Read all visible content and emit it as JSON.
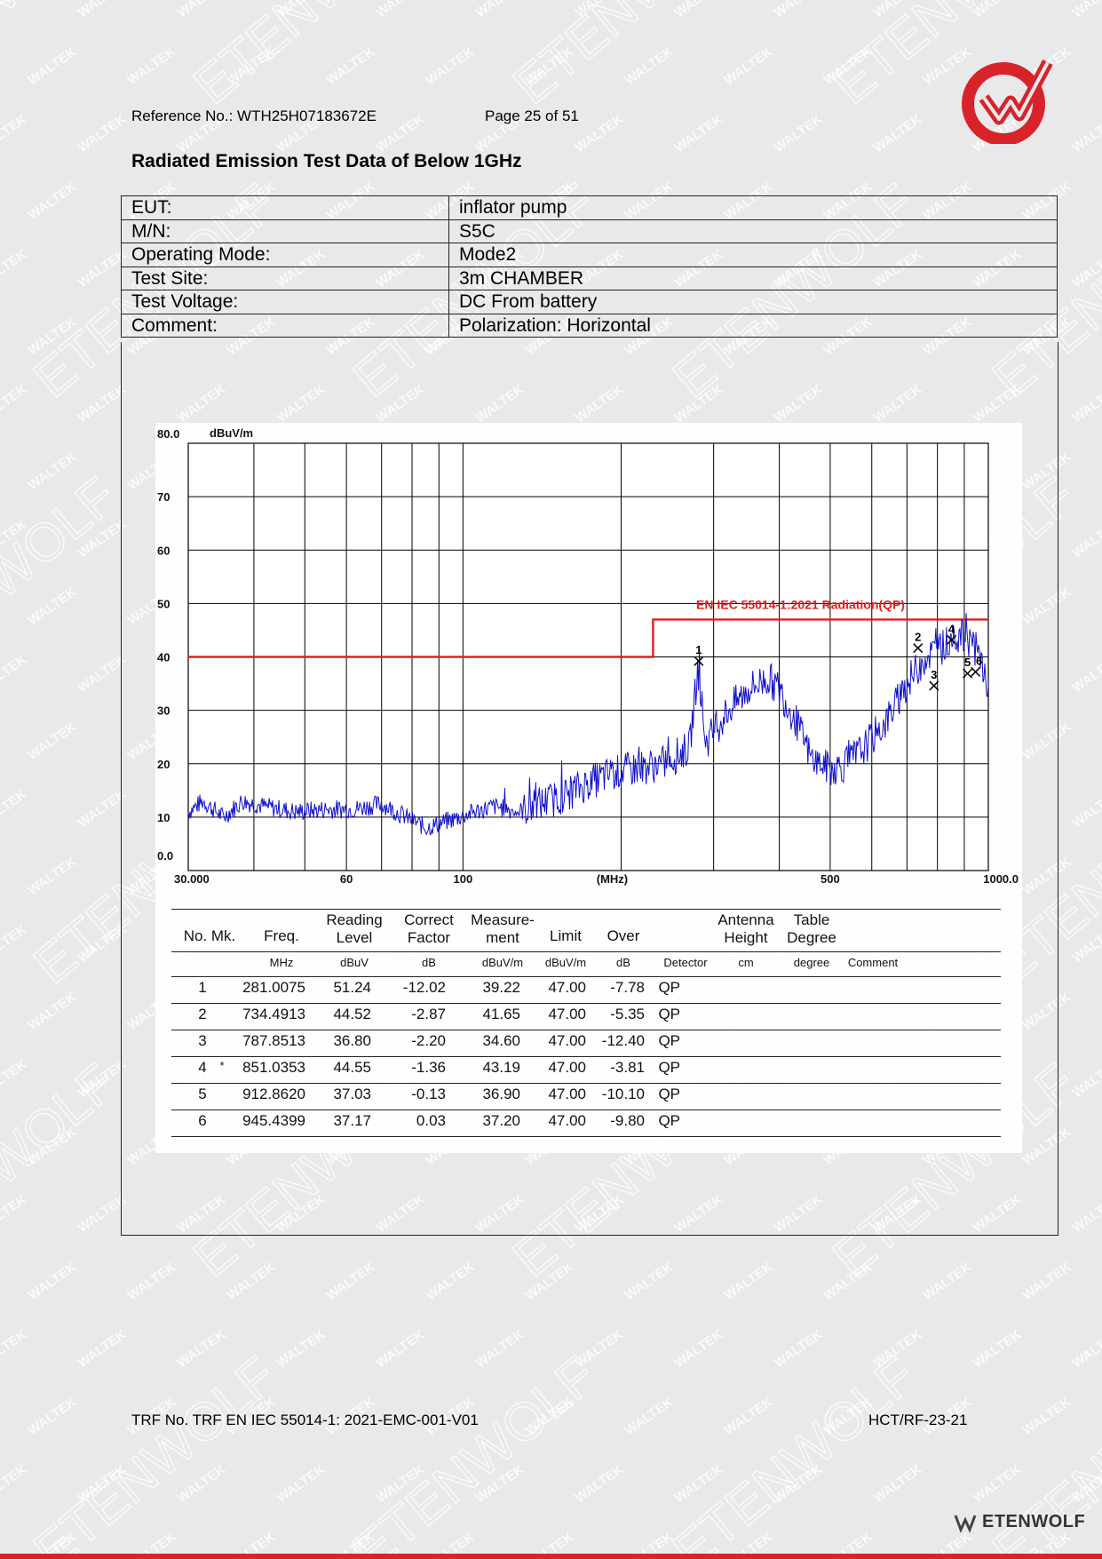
{
  "header": {
    "reference": "Reference No.: WTH25H07183672E",
    "page": "Page 25 of 51"
  },
  "title": "Radiated Emission Test Data of Below 1GHz",
  "info": [
    {
      "label": "EUT:",
      "value": "inflator pump"
    },
    {
      "label": "M/N:",
      "value": "S5C"
    },
    {
      "label": "Operating Mode:",
      "value": "Mode2"
    },
    {
      "label": "Test Site:",
      "value": "3m CHAMBER"
    },
    {
      "label": "Test Voltage:",
      "value": "DC From battery"
    },
    {
      "label": "Comment:",
      "value": "Polarization: Horizontal"
    }
  ],
  "chart_data": {
    "type": "line",
    "yunit": "dBuV/m",
    "xunit": "(MHz)",
    "xscale": "log",
    "xlim": [
      30,
      1000
    ],
    "ylim": [
      0,
      80
    ],
    "y_ticks": [
      "80.0",
      "70",
      "60",
      "50",
      "40",
      "30",
      "20",
      "10",
      "0.0"
    ],
    "x_ticks": [
      {
        "value": 30,
        "label": "30.000"
      },
      {
        "value": 60,
        "label": "60"
      },
      {
        "value": 100,
        "label": "100"
      },
      {
        "value": 500,
        "label": "500"
      },
      {
        "value": 1000,
        "label": "1000.0"
      }
    ],
    "grid": true,
    "limit_line": {
      "label": "EN IEC 55014-1:2021 Radiation(QP)",
      "color": "#e02020",
      "segments": [
        [
          30,
          40
        ],
        [
          230,
          40
        ],
        [
          230,
          47
        ],
        [
          1000,
          47
        ]
      ]
    },
    "trace_color": "#1010c8",
    "trace_anchors": [
      [
        30,
        11
      ],
      [
        32,
        13
      ],
      [
        35,
        10
      ],
      [
        38,
        13
      ],
      [
        42,
        12
      ],
      [
        48,
        11
      ],
      [
        55,
        11.5
      ],
      [
        62,
        11.5
      ],
      [
        70,
        12.5
      ],
      [
        78,
        10
      ],
      [
        85,
        8
      ],
      [
        95,
        9.5
      ],
      [
        105,
        11
      ],
      [
        115,
        12
      ],
      [
        128,
        11
      ],
      [
        140,
        12.5
      ],
      [
        155,
        14
      ],
      [
        170,
        16
      ],
      [
        190,
        18
      ],
      [
        210,
        19
      ],
      [
        240,
        20
      ],
      [
        270,
        23
      ],
      [
        280,
        38
      ],
      [
        290,
        24
      ],
      [
        320,
        30
      ],
      [
        350,
        34
      ],
      [
        380,
        36
      ],
      [
        400,
        34
      ],
      [
        430,
        28
      ],
      [
        460,
        21
      ],
      [
        500,
        19
      ],
      [
        540,
        20
      ],
      [
        580,
        23
      ],
      [
        640,
        28
      ],
      [
        700,
        35
      ],
      [
        760,
        40
      ],
      [
        820,
        42
      ],
      [
        870,
        44
      ],
      [
        930,
        43
      ],
      [
        970,
        39
      ],
      [
        1000,
        34
      ]
    ],
    "markers": [
      {
        "label": "1",
        "freq": 281.0075,
        "level": 39.22
      },
      {
        "label": "2",
        "freq": 734.4913,
        "level": 41.65
      },
      {
        "label": "3",
        "freq": 787.8513,
        "level": 34.6
      },
      {
        "label": "4",
        "freq": 851.0353,
        "level": 43.19
      },
      {
        "label": "5",
        "freq": 912.862,
        "level": 36.9
      },
      {
        "label": "6",
        "freq": 945.4399,
        "level": 37.2
      }
    ]
  },
  "results": {
    "headers": [
      "No. Mk.",
      "Freq.",
      "Reading Level",
      "Correct Factor",
      "Measure-ment",
      "Limit",
      "Over",
      "",
      "Antenna Height",
      "Table Degree",
      ""
    ],
    "header_lines": [
      [
        "No. Mk."
      ],
      [
        "Freq."
      ],
      [
        "Reading",
        "Level"
      ],
      [
        "Correct",
        "Factor"
      ],
      [
        "Measure-",
        "ment"
      ],
      [
        "Limit"
      ],
      [
        "Over"
      ],
      [
        ""
      ],
      [
        "Antenna",
        "Height"
      ],
      [
        "Table",
        "Degree"
      ],
      [
        ""
      ]
    ],
    "units": [
      "",
      "MHz",
      "dBuV",
      "dB",
      "dBuV/m",
      "dBuV/m",
      "dB",
      "Detector",
      "cm",
      "degree",
      "Comment"
    ],
    "rows": [
      {
        "no": "1",
        "mk": "",
        "freq": "281.0075",
        "reading": "51.24",
        "factor": "-12.02",
        "measure": "39.22",
        "limit": "47.00",
        "over": "-7.78",
        "detector": "QP"
      },
      {
        "no": "2",
        "mk": "",
        "freq": "734.4913",
        "reading": "44.52",
        "factor": "-2.87",
        "measure": "41.65",
        "limit": "47.00",
        "over": "-5.35",
        "detector": "QP"
      },
      {
        "no": "3",
        "mk": "",
        "freq": "787.8513",
        "reading": "36.80",
        "factor": "-2.20",
        "measure": "34.60",
        "limit": "47.00",
        "over": "-12.40",
        "detector": "QP"
      },
      {
        "no": "4",
        "mk": "*",
        "freq": "851.0353",
        "reading": "44.55",
        "factor": "-1.36",
        "measure": "43.19",
        "limit": "47.00",
        "over": "-3.81",
        "detector": "QP"
      },
      {
        "no": "5",
        "mk": "",
        "freq": "912.8620",
        "reading": "37.03",
        "factor": "-0.13",
        "measure": "36.90",
        "limit": "47.00",
        "over": "-10.10",
        "detector": "QP"
      },
      {
        "no": "6",
        "mk": "",
        "freq": "945.4399",
        "reading": "37.17",
        "factor": "0.03",
        "measure": "37.20",
        "limit": "47.00",
        "over": "-9.80",
        "detector": "QP"
      }
    ]
  },
  "watermark": {
    "large": "ETENWOLF",
    "small": "WALTEK"
  },
  "footer": {
    "trf": "TRF No. TRF EN IEC 55014-1: 2021-EMC-001-V01",
    "code": "HCT/RF-23-21",
    "brand": "ETENWOLF"
  },
  "colors": {
    "accent_red": "#d8232a",
    "page_bg": "#e9e9eb"
  }
}
